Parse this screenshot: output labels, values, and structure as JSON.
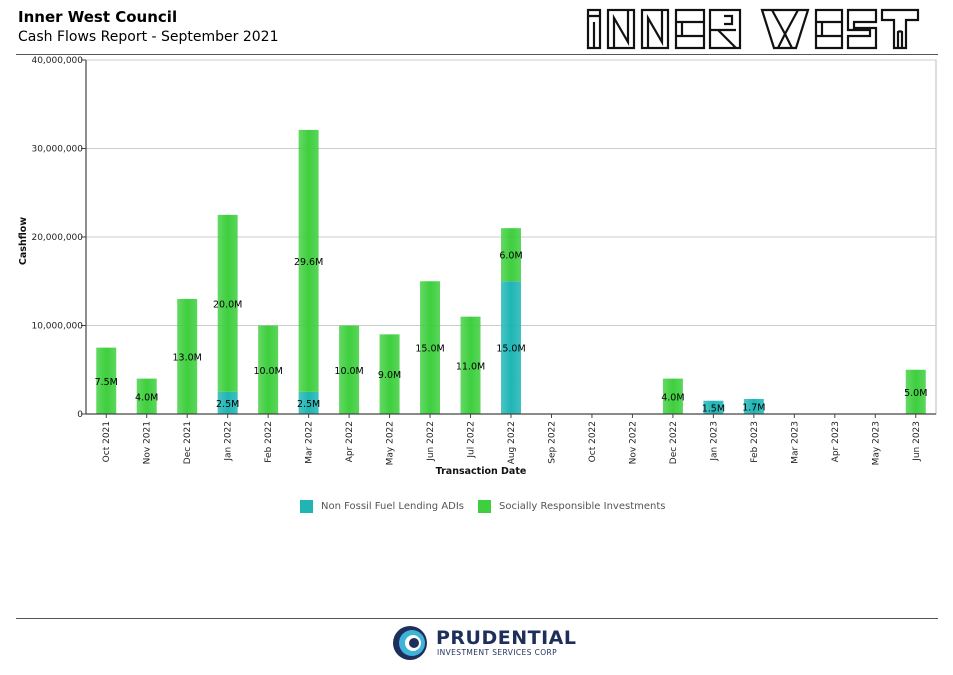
{
  "header": {
    "organization": "Inner West Council",
    "report_title": "Cash Flows Report - September 2021"
  },
  "logos": {
    "council_logo_text": "INNER WEST",
    "footer_company": "PRUDENTIAL",
    "footer_company_sub": "INVESTMENT SERVICES CORP"
  },
  "colors": {
    "teal": "#1fb5b5",
    "green": "#3ecf3e"
  },
  "chart_data": {
    "type": "bar",
    "stacked": true,
    "xlabel": "Transaction Date",
    "ylabel": "Cashflow",
    "ylim": [
      0,
      40000000
    ],
    "yticks": [
      0,
      10000000,
      20000000,
      30000000,
      40000000
    ],
    "ytick_labels": [
      "0",
      "10,000,000",
      "20,000,000",
      "30,000,000",
      "40,000,000"
    ],
    "grid": true,
    "legend_position": "bottom",
    "categories": [
      "Oct 2021",
      "Nov 2021",
      "Dec 2021",
      "Jan 2022",
      "Feb 2022",
      "Mar 2022",
      "Apr 2022",
      "May 2022",
      "Jun 2022",
      "Jul 2022",
      "Aug 2022",
      "Sep 2022",
      "Oct 2022",
      "Nov 2022",
      "Dec 2022",
      "Jan 2023",
      "Feb 2023",
      "Mar 2023",
      "Apr 2023",
      "May 2023",
      "Jun 2023"
    ],
    "series": [
      {
        "name": "Non Fossil Fuel Lending ADIs",
        "color": "#1fb5b5",
        "values": [
          0,
          0,
          0,
          2500000,
          0,
          2500000,
          0,
          0,
          0,
          0,
          15000000,
          0,
          0,
          0,
          0,
          1500000,
          1700000,
          0,
          0,
          0,
          0
        ],
        "labels": [
          "",
          "",
          "",
          "2.5M",
          "",
          "2.5M",
          "",
          "",
          "",
          "",
          "15.0M",
          "",
          "",
          "",
          "",
          "1.5M",
          "1.7M",
          "",
          "",
          "",
          ""
        ]
      },
      {
        "name": "Socially Responsible Investments",
        "color": "#3ecf3e",
        "values": [
          7500000,
          4000000,
          13000000,
          20000000,
          10000000,
          29600000,
          10000000,
          9000000,
          15000000,
          11000000,
          6000000,
          0,
          0,
          0,
          4000000,
          0,
          0,
          0,
          0,
          0,
          5000000
        ],
        "labels": [
          "7.5M",
          "4.0M",
          "13.0M",
          "20.0M",
          "10.0M",
          "29.6M",
          "10.0M",
          "9.0M",
          "15.0M",
          "11.0M",
          "6.0M",
          "",
          "",
          "",
          "4.0M",
          "",
          "",
          "",
          "",
          "",
          "5.0M"
        ]
      }
    ]
  }
}
